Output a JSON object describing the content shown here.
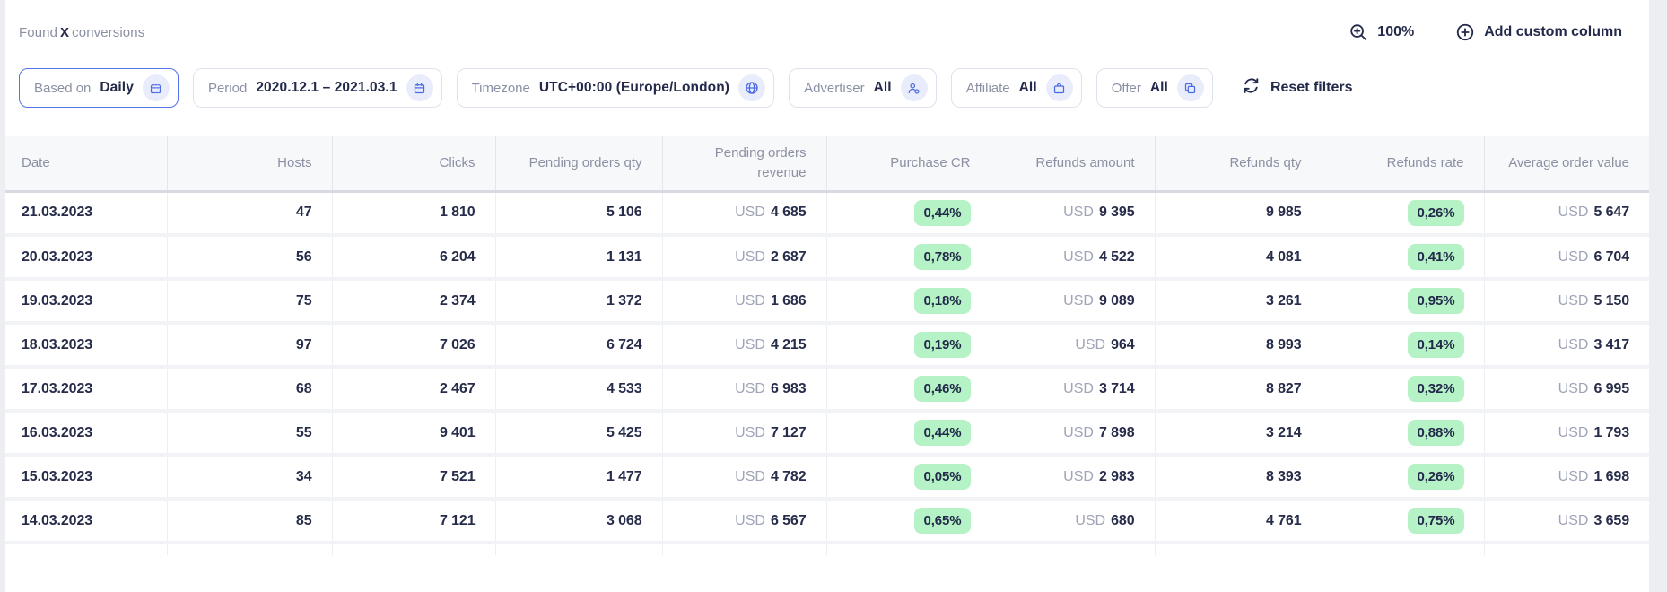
{
  "topbar": {
    "found_prefix": "Found",
    "found_count": "X",
    "found_suffix": "conversions",
    "zoom_level": "100%",
    "add_custom_column_label": "Add custom column"
  },
  "filters": {
    "based_on": {
      "label": "Based on",
      "value": "Daily"
    },
    "period": {
      "label": "Period",
      "value": "2020.12.1 – 2021.03.1"
    },
    "timezone": {
      "label": "Timezone",
      "value": "UTC+00:00 (Europe/London)"
    },
    "advertiser": {
      "label": "Advertiser",
      "value": "All"
    },
    "affiliate": {
      "label": "Affiliate",
      "value": "All"
    },
    "offer": {
      "label": "Offer",
      "value": "All"
    },
    "reset_label": "Reset filters"
  },
  "table": {
    "currency": "USD",
    "columns": [
      "Date",
      "Hosts",
      "Clicks",
      "Pending orders qty",
      "Pending orders revenue",
      "Purchase CR",
      "Refunds amount",
      "Refunds qty",
      "Refunds rate",
      "Average order value"
    ],
    "rows": [
      {
        "date": "21.03.2023",
        "hosts": "47",
        "clicks": "1 810",
        "pending_qty": "5 106",
        "pending_revenue": "4 685",
        "purchase_cr": "0,44%",
        "refunds_amount": "9 395",
        "refunds_qty": "9 985",
        "refunds_rate": "0,26%",
        "avg_order_value": "5 647"
      },
      {
        "date": "20.03.2023",
        "hosts": "56",
        "clicks": "6 204",
        "pending_qty": "1 131",
        "pending_revenue": "2 687",
        "purchase_cr": "0,78%",
        "refunds_amount": "4 522",
        "refunds_qty": "4 081",
        "refunds_rate": "0,41%",
        "avg_order_value": "6 704"
      },
      {
        "date": "19.03.2023",
        "hosts": "75",
        "clicks": "2 374",
        "pending_qty": "1 372",
        "pending_revenue": "1 686",
        "purchase_cr": "0,18%",
        "refunds_amount": "9 089",
        "refunds_qty": "3 261",
        "refunds_rate": "0,95%",
        "avg_order_value": "5 150"
      },
      {
        "date": "18.03.2023",
        "hosts": "97",
        "clicks": "7 026",
        "pending_qty": "6 724",
        "pending_revenue": "4 215",
        "purchase_cr": "0,19%",
        "refunds_amount": "964",
        "refunds_qty": "8 993",
        "refunds_rate": "0,14%",
        "avg_order_value": "3 417"
      },
      {
        "date": "17.03.2023",
        "hosts": "68",
        "clicks": "2 467",
        "pending_qty": "4 533",
        "pending_revenue": "6 983",
        "purchase_cr": "0,46%",
        "refunds_amount": "3 714",
        "refunds_qty": "8 827",
        "refunds_rate": "0,32%",
        "avg_order_value": "6 995"
      },
      {
        "date": "16.03.2023",
        "hosts": "55",
        "clicks": "9 401",
        "pending_qty": "5 425",
        "pending_revenue": "7 127",
        "purchase_cr": "0,44%",
        "refunds_amount": "7 898",
        "refunds_qty": "3 214",
        "refunds_rate": "0,88%",
        "avg_order_value": "1 793"
      },
      {
        "date": "15.03.2023",
        "hosts": "34",
        "clicks": "7 521",
        "pending_qty": "1 477",
        "pending_revenue": "4 782",
        "purchase_cr": "0,05%",
        "refunds_amount": "2 983",
        "refunds_qty": "8 393",
        "refunds_rate": "0,26%",
        "avg_order_value": "1 698"
      },
      {
        "date": "14.03.2023",
        "hosts": "85",
        "clicks": "7 121",
        "pending_qty": "3 068",
        "pending_revenue": "6 567",
        "purchase_cr": "0,65%",
        "refunds_amount": "680",
        "refunds_qty": "4 761",
        "refunds_rate": "0,75%",
        "avg_order_value": "3 659"
      }
    ]
  },
  "colors": {
    "accent_blue": "#4a6ae4",
    "badge_green": "#b5f2c6",
    "text_dark": "#23294b",
    "text_gray": "#8b90a3",
    "header_bg": "#f7f8fa"
  }
}
